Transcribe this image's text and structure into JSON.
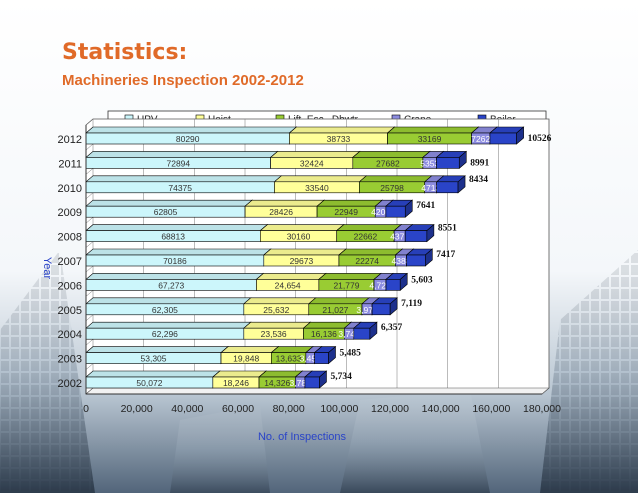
{
  "slide": {
    "title": "Statistics:",
    "subtitle": "Machineries Inspection 2002-2012"
  },
  "colors": {
    "title": "#e06a28",
    "UPV": "#ccf6fb",
    "Hoist": "#ffff99",
    "Lift": "#99cc33",
    "Crane": "#8c8ce0",
    "Boiler": "#2a44c8"
  },
  "chart_data": {
    "type": "bar",
    "orientation": "horizontal",
    "stacked": true,
    "xlabel": "No. of Inspections",
    "ylabel": "Year",
    "xlim": [
      0,
      180000
    ],
    "xticks": [
      "0",
      "20,000",
      "40,000",
      "60,000",
      "80,000",
      "100,000",
      "120,000",
      "140,000",
      "160,000",
      "180,000"
    ],
    "legend": [
      "UPV",
      "Hoist",
      "Lift, Esc., Dbwtr",
      "Crane",
      "Boiler"
    ],
    "legend_position": "top",
    "categories": [
      "2012",
      "2011",
      "2010",
      "2009",
      "2008",
      "2007",
      "2006",
      "2005",
      "2004",
      "2003",
      "2002"
    ],
    "series": [
      {
        "name": "UPV",
        "values": [
          80290,
          72894,
          74375,
          62805,
          68813,
          70186,
          67273,
          62305,
          62296,
          53305,
          50072
        ],
        "labels": [
          "80290",
          "72894",
          "74375",
          "62805",
          "68813",
          "70186",
          "67,273",
          "62,305",
          "62,296",
          "53,305",
          "50,072"
        ]
      },
      {
        "name": "Hoist",
        "values": [
          38733,
          32424,
          33540,
          28426,
          30160,
          29673,
          24654,
          25632,
          23536,
          19848,
          18246
        ],
        "labels": [
          "38733",
          "32424",
          "33540",
          "28426",
          "30160",
          "29673",
          "24,654",
          "25,632",
          "23,536",
          "19,848",
          "18,246"
        ]
      },
      {
        "name": "Lift, Esc., Dbwtr",
        "values": [
          33169,
          27682,
          25798,
          22949,
          22662,
          22274,
          21779,
          21027,
          16136,
          13633,
          14326
        ],
        "labels": [
          "33169",
          "27682",
          "25798",
          "22949",
          "22662",
          "22274",
          "21,779",
          "21,027",
          "16,136",
          "13,633",
          "14,326"
        ]
      },
      {
        "name": "Crane",
        "values": [
          7262,
          5353,
          4713,
          4206,
          4371,
          4388,
          4727,
          3970,
          3740,
          3451,
          3780
        ],
        "labels": [
          "7262",
          "5353",
          "4713",
          "4206",
          "4371",
          "4388",
          "4,727",
          "3,970",
          "3,740",
          "3,451",
          "3,780"
        ]
      },
      {
        "name": "Boiler",
        "values": [
          10526,
          8991,
          8434,
          7641,
          8551,
          7417,
          5603,
          7119,
          6357,
          5485,
          5734
        ],
        "labels": [
          "10526",
          "8991",
          "8434",
          "7641",
          "8551",
          "7417",
          "5,603",
          "7,119",
          "6,357",
          "5,485",
          "5,734"
        ]
      }
    ]
  }
}
